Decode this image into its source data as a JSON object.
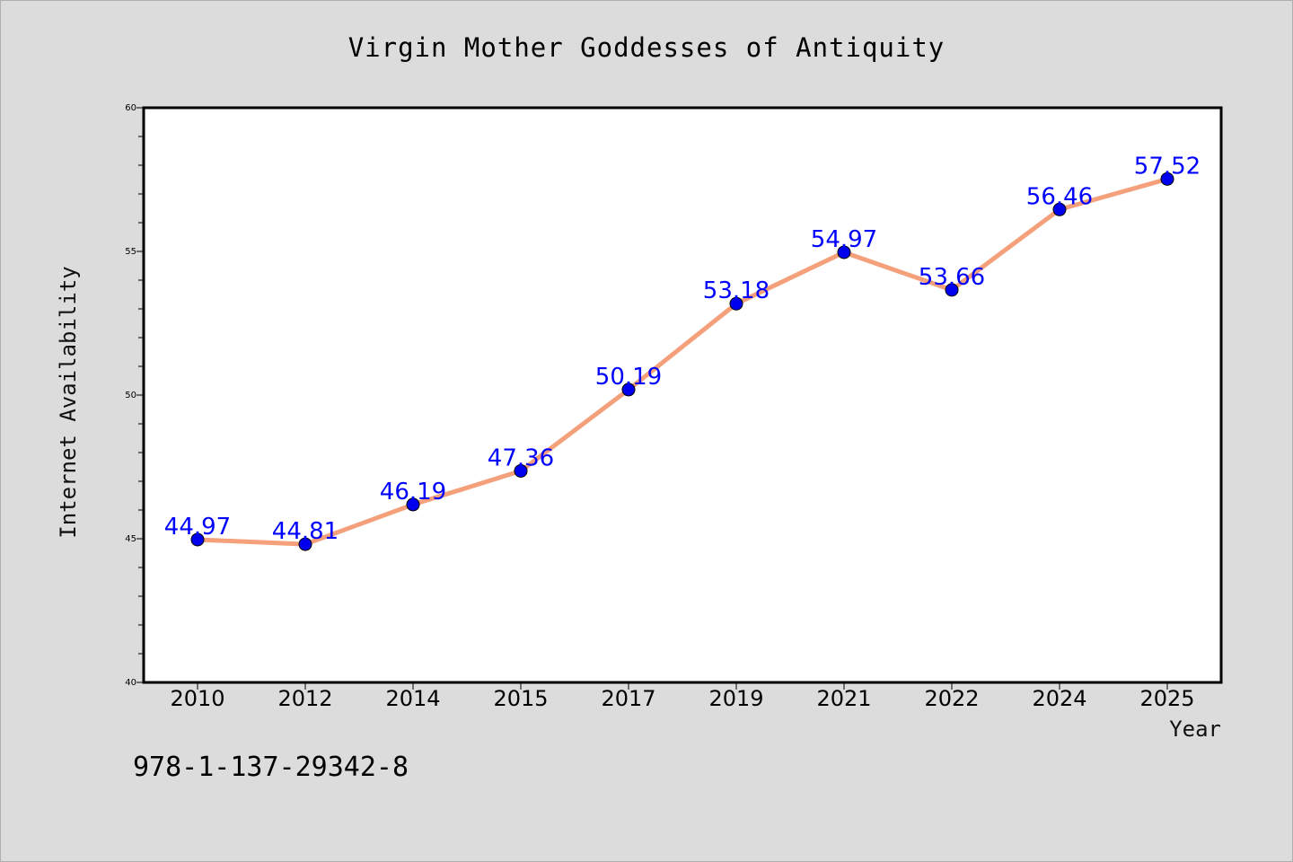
{
  "chart_data": {
    "type": "line",
    "title": "Virgin Mother Goddesses of Antiquity",
    "xlabel": "Year",
    "ylabel": "Internet Availability",
    "categories": [
      "2010",
      "2012",
      "2014",
      "2015",
      "2017",
      "2019",
      "2021",
      "2022",
      "2024",
      "2025"
    ],
    "series": [
      {
        "values": [
          44.97,
          44.81,
          46.19,
          47.36,
          50.19,
          53.18,
          54.97,
          53.66,
          56.46,
          57.52
        ],
        "data_labels": [
          "44.97",
          "44.81",
          "46.19",
          "47.36",
          "50.19",
          "53.18",
          "54.97",
          "53.66",
          "56.46",
          "57.52"
        ],
        "line_color": "#f4a07a",
        "marker_color": "#0000ee"
      }
    ],
    "ylim": [
      40,
      60
    ],
    "yticks": [
      "40",
      "45",
      "50",
      "55",
      "60"
    ],
    "grid": false,
    "legend": "none"
  },
  "footer": {
    "isbn": "978-1-137-29342-8"
  },
  "colors": {
    "background": "#dcdcdc",
    "plot_area": "#ffffff",
    "data_label": "#0000ff"
  }
}
